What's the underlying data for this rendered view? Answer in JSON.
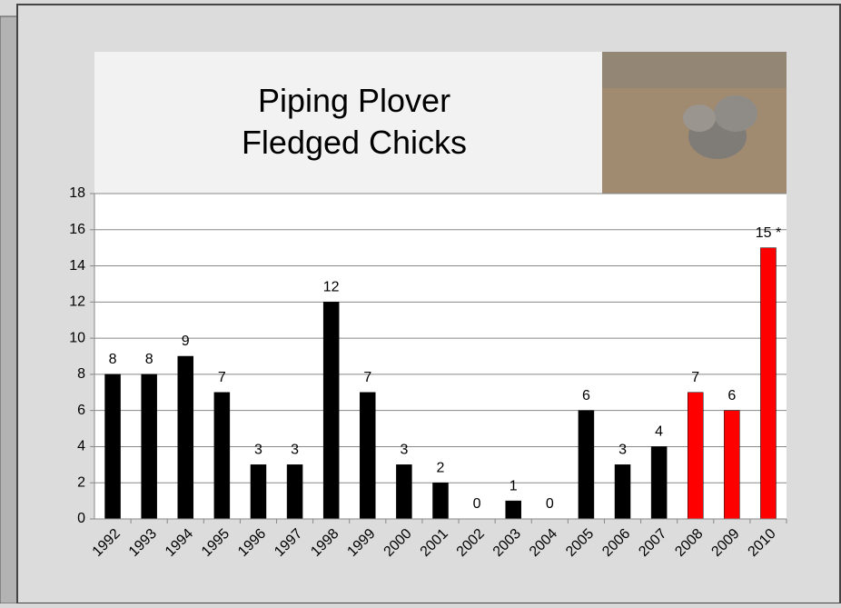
{
  "chart_data": {
    "type": "bar",
    "title": "Piping Plover\nFledged Chicks",
    "categories": [
      "1992",
      "1993",
      "1994",
      "1995",
      "1996",
      "1997",
      "1998",
      "1999",
      "2000",
      "2001",
      "2002",
      "2003",
      "2004",
      "2005",
      "2006",
      "2007",
      "2008",
      "2009",
      "2010"
    ],
    "values": [
      8,
      8,
      9,
      7,
      3,
      3,
      12,
      7,
      3,
      2,
      0,
      1,
      0,
      6,
      3,
      4,
      7,
      6,
      15
    ],
    "value_labels": [
      "8",
      "8",
      "9",
      "7",
      "3",
      "3",
      "12",
      "7",
      "3",
      "2",
      "0",
      "1",
      "0",
      "6",
      "3",
      "4",
      "7",
      "6",
      "15 *"
    ],
    "colors": [
      "#000000",
      "#000000",
      "#000000",
      "#000000",
      "#000000",
      "#000000",
      "#000000",
      "#000000",
      "#000000",
      "#000000",
      "#000000",
      "#000000",
      "#000000",
      "#000000",
      "#000000",
      "#000000",
      "#ff0000",
      "#ff0000",
      "#ff0000"
    ],
    "ylim": [
      0,
      18
    ],
    "yticks": [
      0,
      2,
      4,
      6,
      8,
      10,
      12,
      14,
      16,
      18
    ],
    "grid": true
  }
}
